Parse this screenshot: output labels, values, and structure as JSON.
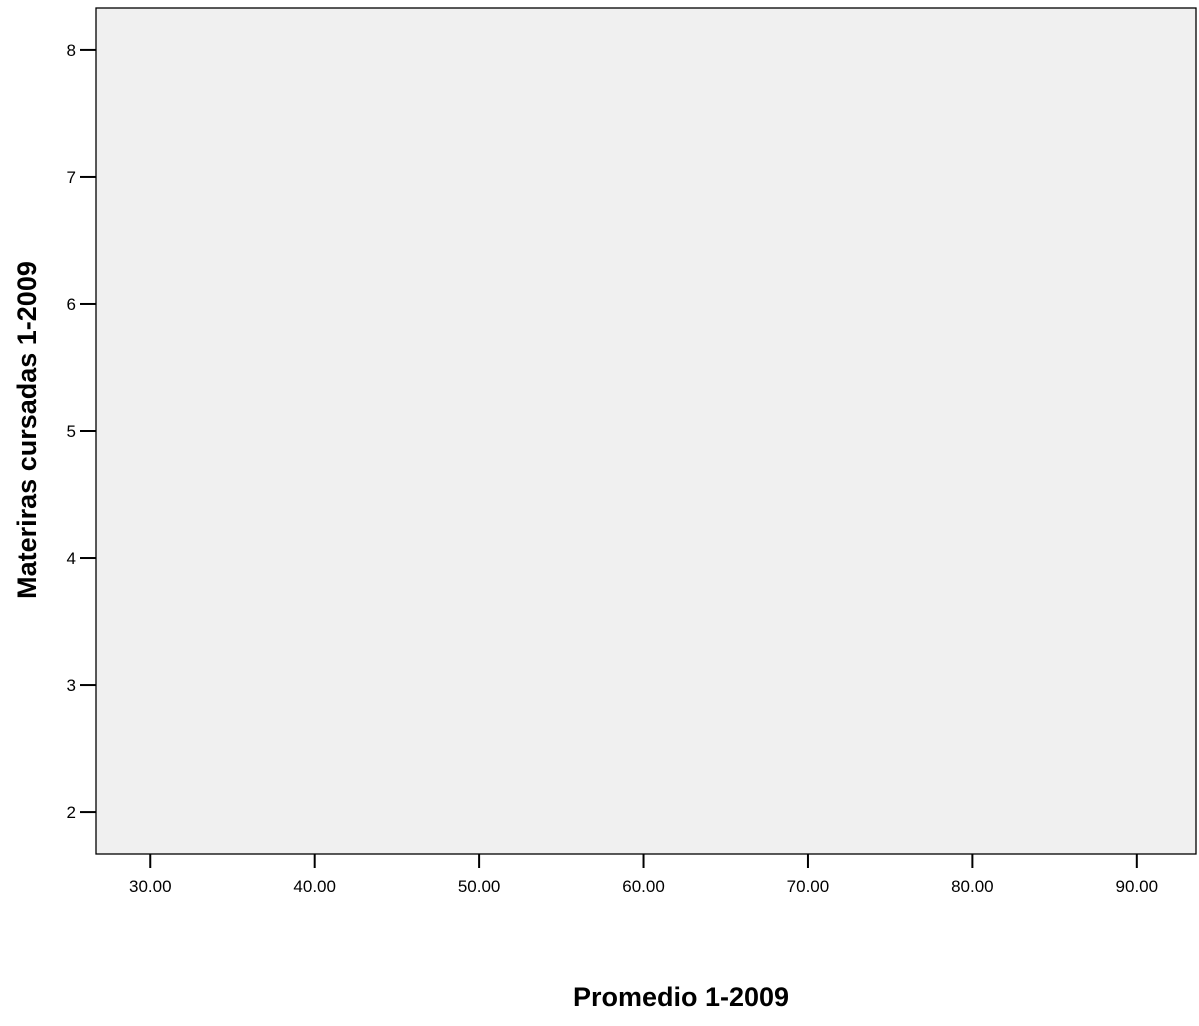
{
  "chart_data": {
    "type": "scatter",
    "title": "",
    "xlabel": "Promedio 1-2009",
    "ylabel": "Materiras cursadas 1-2009",
    "xlim": [
      26.7,
      93.6
    ],
    "ylim": [
      1.67,
      8.33
    ],
    "xticks": [
      30,
      40,
      50,
      60,
      70,
      80,
      90
    ],
    "xtick_labels": [
      "30.00",
      "40.00",
      "50.00",
      "60.00",
      "70.00",
      "80.00",
      "90.00"
    ],
    "yticks": [
      2,
      3,
      4,
      5,
      6,
      7,
      8
    ],
    "ytick_labels": [
      "2",
      "3",
      "4",
      "5",
      "6",
      "7",
      "8"
    ],
    "series": [
      {
        "values": []
      }
    ],
    "grid": false,
    "legend": "none",
    "colors": {
      "plot_background": "#f0f0f0",
      "axis": "#000000"
    }
  }
}
